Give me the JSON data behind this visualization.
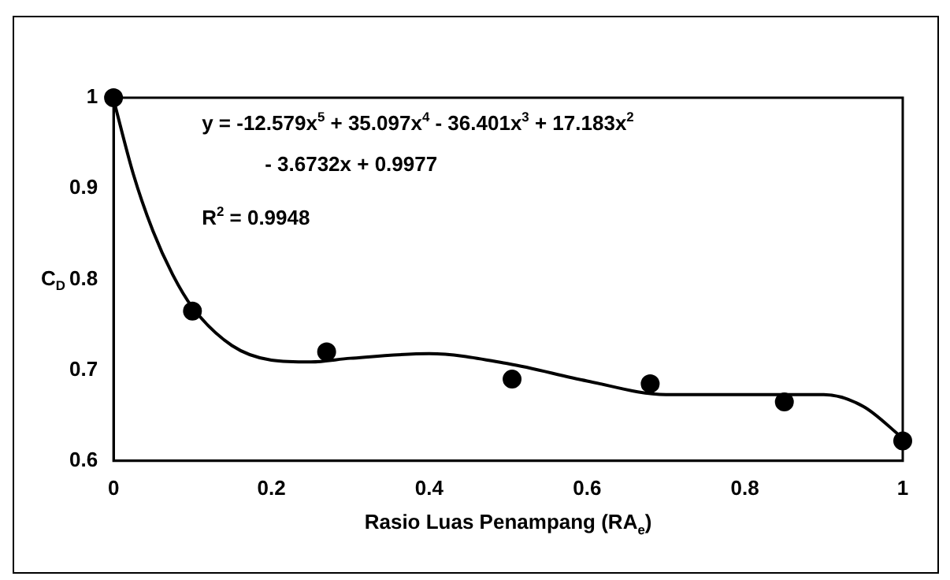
{
  "chart_data": {
    "type": "scatter",
    "xlabel": "Rasio Luas Penampang (RA$_{e}$)",
    "ylabel": "C$_{D}$",
    "xlim": [
      0,
      1
    ],
    "xticks": [
      0,
      0.2,
      0.4,
      0.6,
      0.8,
      1
    ],
    "ylim": [
      0.6,
      1
    ],
    "yticks": [
      0.6,
      0.7,
      0.8,
      0.9,
      1
    ],
    "grid": false,
    "legend": false,
    "marker": "circle",
    "series": [
      {
        "color": "#000000",
        "x": [
          0,
          0.1,
          0.27,
          0.505,
          0.68,
          0.85,
          1
        ],
        "values": [
          1,
          0.765,
          0.72,
          0.69,
          0.685,
          0.665,
          0.622
        ]
      },
      {
        "type": "line",
        "color": "#000000",
        "marker": "none",
        "x": [
          0,
          0.025,
          0.05,
          0.075,
          0.1,
          0.15,
          0.2,
          0.25,
          0.3,
          0.4,
          0.5,
          0.6,
          0.7,
          0.8,
          0.9,
          0.95,
          1
        ],
        "values": [
          0.998,
          0.916,
          0.853,
          0.805,
          0.769,
          0.727,
          0.711,
          0.709,
          0.713,
          0.718,
          0.707,
          0.688,
          0.673,
          0.673,
          0.673,
          0.66,
          0.625
        ]
      }
    ],
    "annotations": [
      "y = -12.579x$^{5}$ + 35.097x$^{4}$ - 36.401x$^{3}$ + 17.183x$^{2}$",
      "- 3.6732x + 0.9977",
      "R$^{2}$ = 0.9948"
    ]
  }
}
